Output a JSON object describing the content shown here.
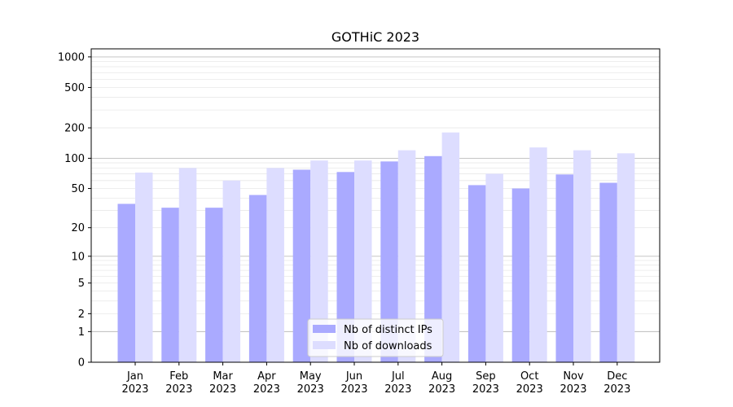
{
  "chart_data": {
    "type": "bar",
    "title": "GOTHiC 2023",
    "xlabel": "",
    "ylabel": "",
    "scale": "symlog",
    "ylim": [
      0,
      1200
    ],
    "grid": true,
    "legend_position": "bottom-center",
    "categories": [
      [
        "Jan",
        "2023"
      ],
      [
        "Feb",
        "2023"
      ],
      [
        "Mar",
        "2023"
      ],
      [
        "Apr",
        "2023"
      ],
      [
        "May",
        "2023"
      ],
      [
        "Jun",
        "2023"
      ],
      [
        "Jul",
        "2023"
      ],
      [
        "Aug",
        "2023"
      ],
      [
        "Sep",
        "2023"
      ],
      [
        "Oct",
        "2023"
      ],
      [
        "Nov",
        "2023"
      ],
      [
        "Dec",
        "2023"
      ]
    ],
    "y_ticks": [
      {
        "value": 0,
        "label": "0"
      },
      {
        "value": 1,
        "label": "1"
      },
      {
        "value": 2,
        "label": "2"
      },
      {
        "value": 5,
        "label": "5"
      },
      {
        "value": 10,
        "label": "10"
      },
      {
        "value": 20,
        "label": "20"
      },
      {
        "value": 50,
        "label": "50"
      },
      {
        "value": 100,
        "label": "100"
      },
      {
        "value": 200,
        "label": "200"
      },
      {
        "value": 500,
        "label": "500"
      },
      {
        "value": 1000,
        "label": "1000"
      }
    ],
    "series": [
      {
        "name": "Nb of distinct IPs",
        "color": "#aaaaff",
        "values": [
          35,
          32,
          32,
          43,
          77,
          73,
          93,
          105,
          54,
          50,
          69,
          57
        ]
      },
      {
        "name": "Nb of downloads",
        "color": "#ddddff",
        "values": [
          72,
          80,
          60,
          80,
          95,
          95,
          120,
          180,
          70,
          128,
          120,
          112
        ]
      }
    ]
  }
}
